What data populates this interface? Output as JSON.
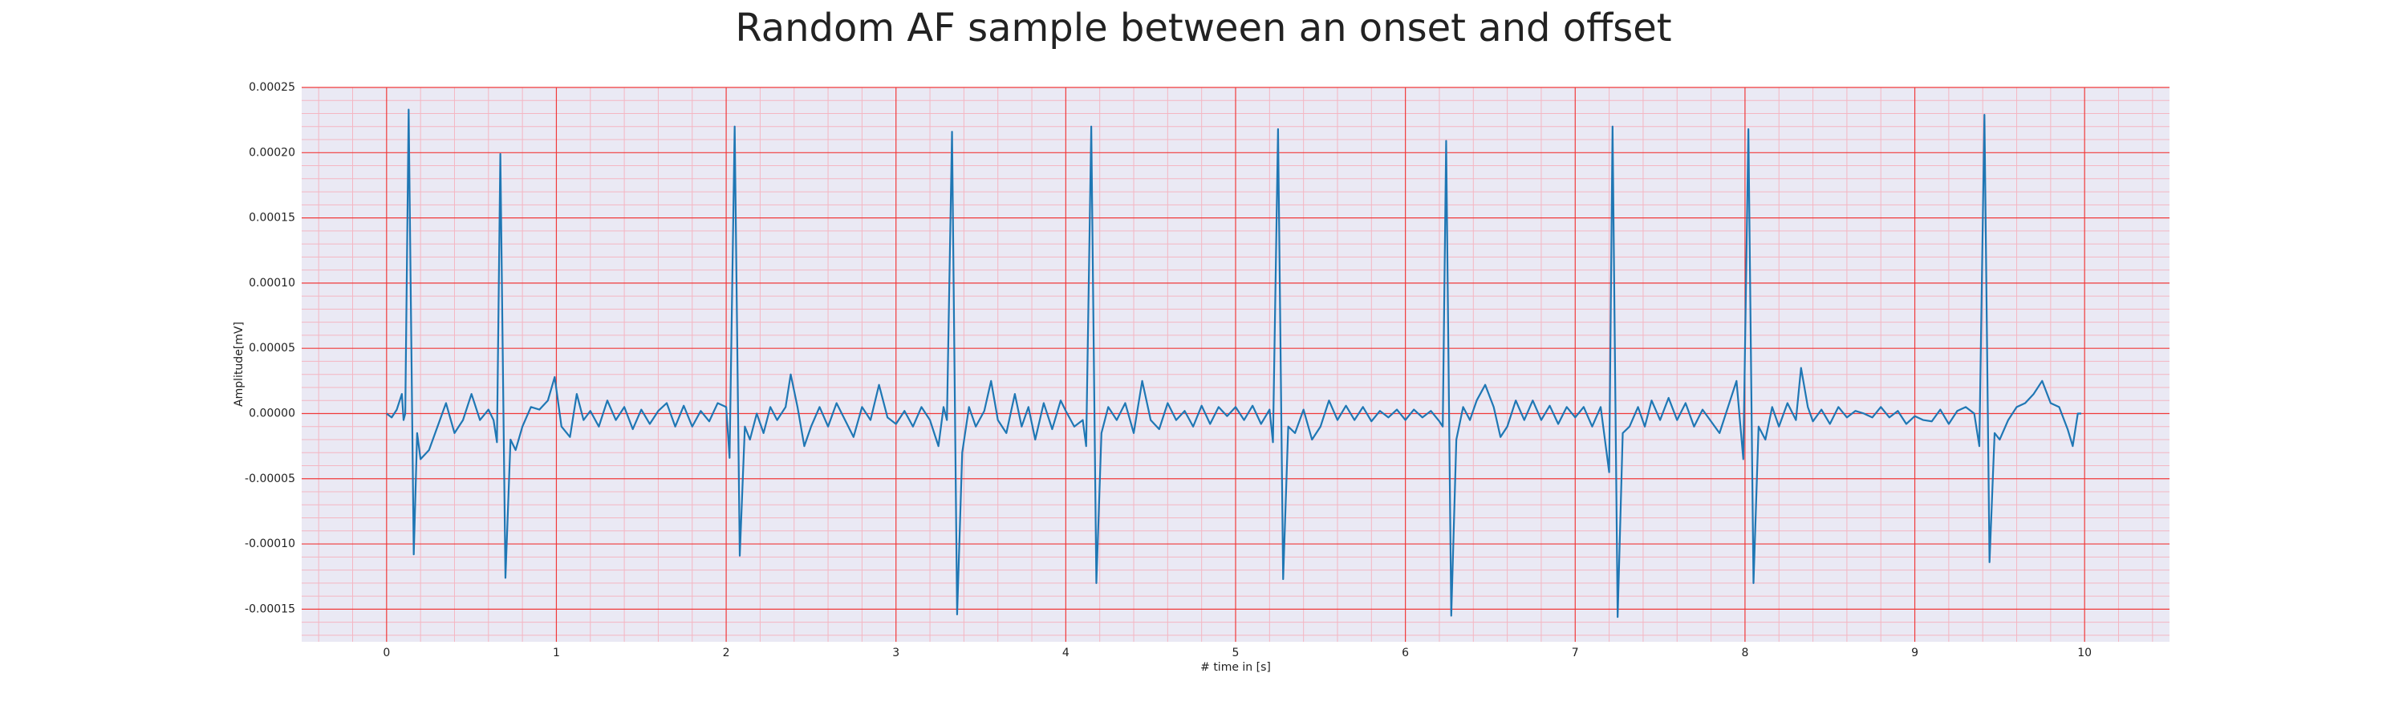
{
  "chart_data": {
    "type": "line",
    "title": "Random AF sample between an onset and offset",
    "x_label": "# time in [s]",
    "y_label": "Amplitude[mV]",
    "xlim": [
      -0.5,
      10.5
    ],
    "ylim": [
      -0.000175,
      0.00025
    ],
    "xticks": [
      0,
      1,
      2,
      3,
      4,
      5,
      6,
      7,
      8,
      9,
      10
    ],
    "yticks": [
      {
        "value": -0.00015,
        "label": "-0.00015"
      },
      {
        "value": -0.0001,
        "label": "-0.00010"
      },
      {
        "value": -5e-05,
        "label": "-0.00005"
      },
      {
        "value": 0,
        "label": "0.00000"
      },
      {
        "value": 5e-05,
        "label": "0.00005"
      },
      {
        "value": 0.0001,
        "label": "0.00010"
      },
      {
        "value": 0.00015,
        "label": "0.00015"
      },
      {
        "value": 0.0002,
        "label": "0.00020"
      },
      {
        "value": 0.00025,
        "label": "0.00025"
      }
    ],
    "grid": true,
    "minor_grid": true,
    "x": [
      0.0,
      0.03,
      0.06,
      0.09,
      0.1,
      0.11,
      0.13,
      0.16,
      0.18,
      0.2,
      0.25,
      0.3,
      0.35,
      0.4,
      0.45,
      0.5,
      0.55,
      0.6,
      0.63,
      0.65,
      0.67,
      0.7,
      0.73,
      0.76,
      0.8,
      0.85,
      0.9,
      0.95,
      0.99,
      1.03,
      1.08,
      1.12,
      1.16,
      1.2,
      1.25,
      1.3,
      1.35,
      1.4,
      1.45,
      1.5,
      1.55,
      1.6,
      1.65,
      1.7,
      1.75,
      1.8,
      1.85,
      1.9,
      1.95,
      2.0,
      2.02,
      2.05,
      2.08,
      2.11,
      2.14,
      2.18,
      2.22,
      2.26,
      2.3,
      2.35,
      2.38,
      2.42,
      2.46,
      2.5,
      2.55,
      2.6,
      2.65,
      2.7,
      2.75,
      2.8,
      2.85,
      2.9,
      2.95,
      3.0,
      3.05,
      3.1,
      3.15,
      3.2,
      3.25,
      3.28,
      3.3,
      3.33,
      3.36,
      3.39,
      3.43,
      3.47,
      3.52,
      3.56,
      3.6,
      3.65,
      3.7,
      3.74,
      3.78,
      3.82,
      3.87,
      3.92,
      3.97,
      4.0,
      4.05,
      4.1,
      4.12,
      4.15,
      4.18,
      4.21,
      4.25,
      4.3,
      4.35,
      4.4,
      4.45,
      4.5,
      4.55,
      4.6,
      4.65,
      4.7,
      4.75,
      4.8,
      4.85,
      4.9,
      4.95,
      5.0,
      5.05,
      5.1,
      5.15,
      5.2,
      5.22,
      5.25,
      5.28,
      5.31,
      5.35,
      5.4,
      5.45,
      5.5,
      5.55,
      5.6,
      5.65,
      5.7,
      5.75,
      5.8,
      5.85,
      5.9,
      5.95,
      6.0,
      6.05,
      6.1,
      6.15,
      6.2,
      6.22,
      6.24,
      6.27,
      6.3,
      6.34,
      6.38,
      6.42,
      6.47,
      6.52,
      6.56,
      6.6,
      6.65,
      6.7,
      6.75,
      6.8,
      6.85,
      6.9,
      6.95,
      7.0,
      7.05,
      7.1,
      7.15,
      7.2,
      7.22,
      7.25,
      7.28,
      7.32,
      7.37,
      7.41,
      7.45,
      7.5,
      7.55,
      7.6,
      7.65,
      7.7,
      7.75,
      7.8,
      7.85,
      7.9,
      7.95,
      7.99,
      8.02,
      8.05,
      8.08,
      8.12,
      8.16,
      8.2,
      8.25,
      8.3,
      8.33,
      8.37,
      8.4,
      8.45,
      8.5,
      8.55,
      8.6,
      8.65,
      8.7,
      8.75,
      8.8,
      8.85,
      8.9,
      8.95,
      9.0,
      9.05,
      9.1,
      9.15,
      9.2,
      9.25,
      9.3,
      9.35,
      9.38,
      9.41,
      9.44,
      9.47,
      9.5,
      9.55,
      9.6,
      9.65,
      9.7,
      9.75,
      9.8,
      9.85,
      9.9,
      9.93,
      9.96,
      9.98
    ],
    "series": [
      {
        "color": "#1f77b4",
        "values": [
          0,
          -3e-06,
          3e-06,
          1.5e-05,
          -5e-06,
          0,
          0.000233,
          -0.000108,
          -1.5e-05,
          -3.5e-05,
          -2.8e-05,
          -1e-05,
          8e-06,
          -1.5e-05,
          -5e-06,
          1.5e-05,
          -5e-06,
          3e-06,
          -5e-06,
          -2.2e-05,
          0.000199,
          -0.000126,
          -2e-05,
          -2.8e-05,
          -1e-05,
          5e-06,
          3e-06,
          1e-05,
          2.8e-05,
          -1e-05,
          -1.8e-05,
          1.5e-05,
          -5e-06,
          2e-06,
          -1e-05,
          1e-05,
          -5e-06,
          5e-06,
          -1.2e-05,
          3e-06,
          -8e-06,
          2e-06,
          8e-06,
          -1e-05,
          6e-06,
          -1e-05,
          2e-06,
          -6e-06,
          8e-06,
          5e-06,
          -3.4e-05,
          0.00022,
          -0.000109,
          -1e-05,
          -2e-05,
          0,
          -1.5e-05,
          5e-06,
          -5e-06,
          5e-06,
          3e-05,
          5e-06,
          -2.5e-05,
          -1e-05,
          5e-06,
          -1e-05,
          8e-06,
          -5e-06,
          -1.8e-05,
          5e-06,
          -5e-06,
          2.2e-05,
          -3e-06,
          -8e-06,
          2e-06,
          -1e-05,
          5e-06,
          -5e-06,
          -2.5e-05,
          5e-06,
          -5e-06,
          0.000216,
          -0.000154,
          -3e-05,
          5e-06,
          -1e-05,
          2e-06,
          2.5e-05,
          -5e-06,
          -1.5e-05,
          1.5e-05,
          -1e-05,
          5e-06,
          -2e-05,
          8e-06,
          -1.2e-05,
          1e-05,
          2e-06,
          -1e-05,
          -5e-06,
          -2.5e-05,
          0.00022,
          -0.00013,
          -1.5e-05,
          5e-06,
          -5e-06,
          8e-06,
          -1.5e-05,
          2.5e-05,
          -5e-06,
          -1.2e-05,
          8e-06,
          -5e-06,
          2e-06,
          -1e-05,
          6e-06,
          -8e-06,
          5e-06,
          -2e-06,
          5e-06,
          -5e-06,
          6e-06,
          -8e-06,
          3e-06,
          -2.2e-05,
          0.000218,
          -0.000127,
          -1e-05,
          -1.5e-05,
          3e-06,
          -2e-05,
          -1e-05,
          1e-05,
          -5e-06,
          6e-06,
          -5e-06,
          5e-06,
          -6e-06,
          2e-06,
          -3e-06,
          3e-06,
          -5e-06,
          3e-06,
          -3e-06,
          2e-06,
          -6e-06,
          -1e-05,
          0.000209,
          -0.000155,
          -2e-05,
          5e-06,
          -5e-06,
          1e-05,
          2.2e-05,
          5e-06,
          -1.8e-05,
          -1e-05,
          1e-05,
          -5e-06,
          1e-05,
          -5e-06,
          6e-06,
          -8e-06,
          5e-06,
          -3e-06,
          5e-06,
          -1e-05,
          5e-06,
          -4.5e-05,
          0.00022,
          -0.000156,
          -1.5e-05,
          -1e-05,
          5e-06,
          -1e-05,
          1e-05,
          -5e-06,
          1.2e-05,
          -5e-06,
          8e-06,
          -1e-05,
          3e-06,
          -6e-06,
          -1.5e-05,
          5e-06,
          2.5e-05,
          -3.5e-05,
          0.000218,
          -0.00013,
          -1e-05,
          -2e-05,
          5e-06,
          -1e-05,
          8e-06,
          -5e-06,
          3.5e-05,
          5e-06,
          -6e-06,
          3e-06,
          -8e-06,
          5e-06,
          -3e-06,
          2e-06,
          0,
          -3e-06,
          5e-06,
          -3e-06,
          2e-06,
          -8e-06,
          -2e-06,
          -5e-06,
          -6e-06,
          3e-06,
          -8e-06,
          2e-06,
          5e-06,
          0,
          -2.5e-05,
          0.000229,
          -0.000114,
          -1.5e-05,
          -2e-05,
          -5e-06,
          5e-06,
          8e-06,
          1.5e-05,
          2.5e-05,
          8e-06,
          5e-06,
          -1.2e-05,
          -2.5e-05,
          0,
          0
        ]
      }
    ]
  }
}
